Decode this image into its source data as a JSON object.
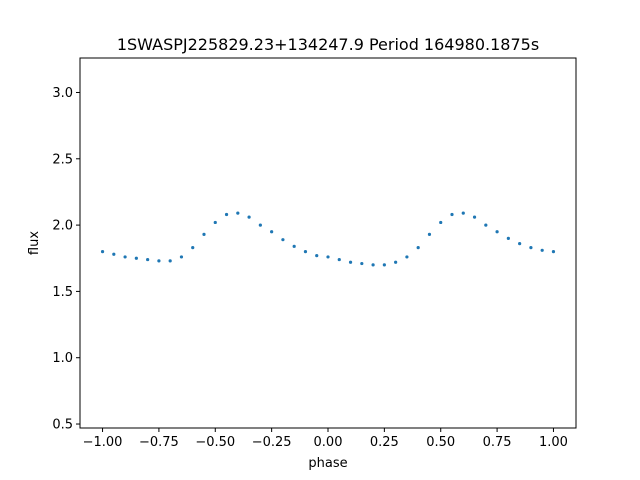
{
  "chart_data": {
    "type": "scatter",
    "title": "1SWASPJ225829.23+134247.9 Period 164980.1875s",
    "xlabel": "phase",
    "ylabel": "flux",
    "xlim": [
      -1.1,
      1.1
    ],
    "ylim": [
      0.47,
      3.26
    ],
    "grid": false,
    "legend": "none",
    "x_ticks": [
      -1.0,
      -0.75,
      -0.5,
      -0.25,
      0.0,
      0.25,
      0.5,
      0.75,
      1.0
    ],
    "x_tick_labels": [
      "−1.00",
      "−0.75",
      "−0.50",
      "−0.25",
      "0.00",
      "0.25",
      "0.50",
      "0.75",
      "1.00"
    ],
    "y_ticks": [
      0.5,
      1.0,
      1.5,
      2.0,
      2.5,
      3.0
    ],
    "y_tick_labels": [
      "0.5",
      "1.0",
      "1.5",
      "2.0",
      "2.5",
      "3.0"
    ],
    "marker_color": "#1f77b4",
    "series": [
      {
        "x": [
          -1.0,
          -0.95,
          -0.9,
          -0.85,
          -0.8,
          -0.75,
          -0.7,
          -0.65,
          -0.6,
          -0.55,
          -0.5,
          -0.45,
          -0.4,
          -0.35,
          -0.3,
          -0.25,
          -0.2,
          -0.15,
          -0.1,
          -0.05,
          0.0,
          0.05,
          0.1,
          0.15,
          0.2,
          0.25,
          0.3,
          0.35,
          0.4,
          0.45,
          0.5,
          0.55,
          0.6,
          0.65,
          0.7,
          0.75,
          0.8,
          0.85,
          0.9,
          0.95,
          1.0
        ],
        "y": [
          1.8,
          1.78,
          1.76,
          1.75,
          1.74,
          1.73,
          1.73,
          1.76,
          1.83,
          1.93,
          2.02,
          2.08,
          2.09,
          2.06,
          2.0,
          1.95,
          1.89,
          1.84,
          1.8,
          1.77,
          1.76,
          1.74,
          1.72,
          1.71,
          1.7,
          1.7,
          1.72,
          1.76,
          1.83,
          1.93,
          2.02,
          2.08,
          2.09,
          2.06,
          2.0,
          1.95,
          1.9,
          1.86,
          1.83,
          1.81,
          1.8
        ]
      }
    ]
  }
}
